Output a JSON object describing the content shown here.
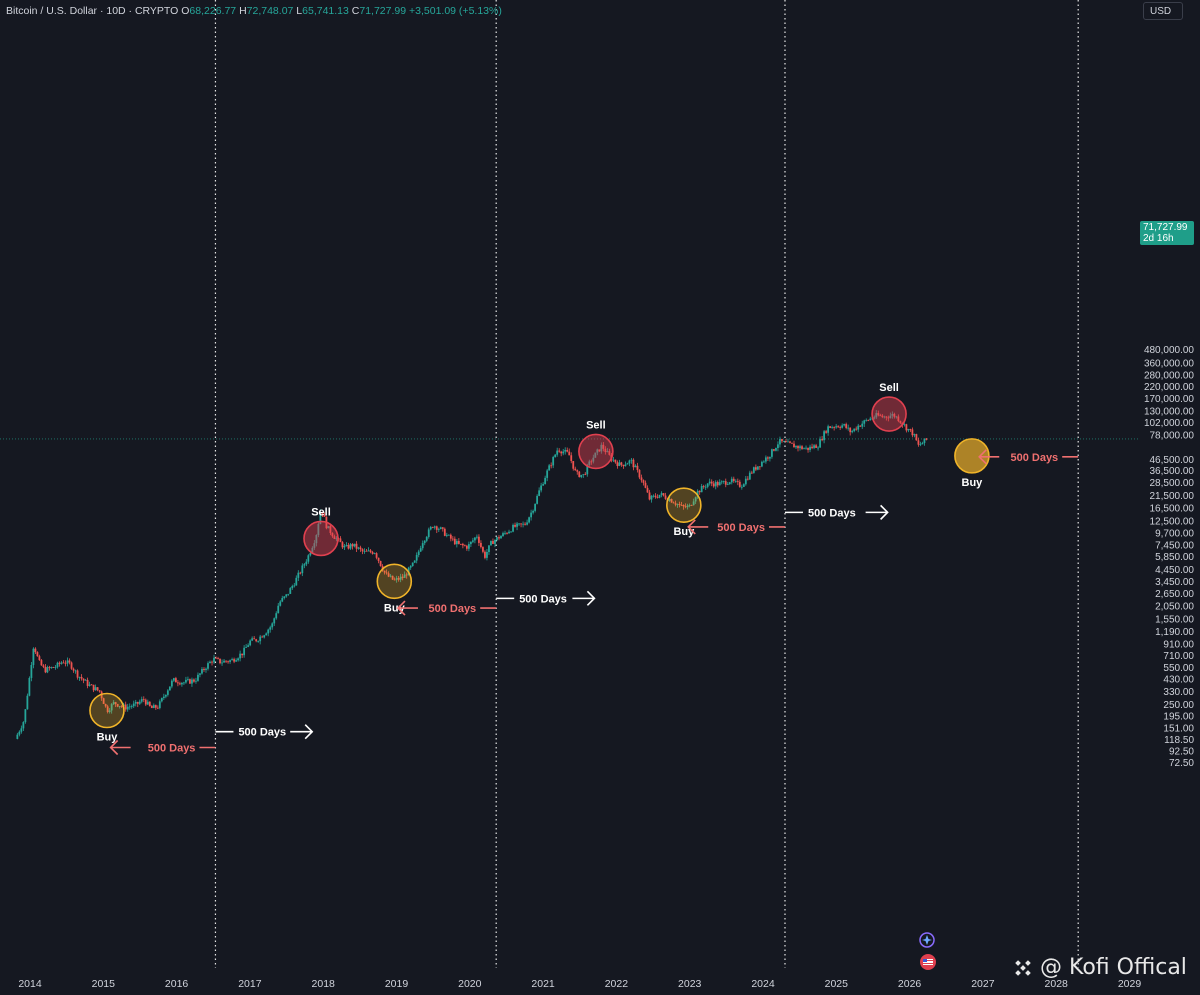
{
  "header": {
    "symbol": "Bitcoin / U.S. Dollar · 10D · CRYPTO",
    "open_label": "O",
    "open_value": "68,226.77",
    "high_label": "H",
    "high_value": "72,748.07",
    "low_label": "L",
    "low_value": "65,741.13",
    "close_label": "C",
    "close_value": "71,727.99",
    "change_value": "+3,501.09 (+5.13%)"
  },
  "currency_button": "USD",
  "price_tag": {
    "price": "71,727.99",
    "countdown": "2d 16h"
  },
  "watermark": {
    "text": "@ Kofi Offical"
  },
  "colors": {
    "background": "#151821",
    "up": "#26a69a",
    "down": "#ef5350",
    "buy": "#f0b429",
    "sell": "#e0404f",
    "white_arrow": "#ffffff",
    "red_arrow": "#f07070"
  },
  "chart_data": {
    "type": "candlestick",
    "y_scale": "log",
    "y_ticks": [
      {
        "value": 480000,
        "label": "480,000.00"
      },
      {
        "value": 360000,
        "label": "360,000.00"
      },
      {
        "value": 280000,
        "label": "280,000.00"
      },
      {
        "value": 220000,
        "label": "220,000.00"
      },
      {
        "value": 170000,
        "label": "170,000.00"
      },
      {
        "value": 130000,
        "label": "130,000.00"
      },
      {
        "value": 102000,
        "label": "102,000.00"
      },
      {
        "value": 78000,
        "label": "78,000.00"
      },
      {
        "value": 46500,
        "label": "46,500.00"
      },
      {
        "value": 36500,
        "label": "36,500.00"
      },
      {
        "value": 28500,
        "label": "28,500.00"
      },
      {
        "value": 21500,
        "label": "21,500.00"
      },
      {
        "value": 16500,
        "label": "16,500.00"
      },
      {
        "value": 12500,
        "label": "12,500.00"
      },
      {
        "value": 9700,
        "label": "9,700.00"
      },
      {
        "value": 7450,
        "label": "7,450.00"
      },
      {
        "value": 5850,
        "label": "5,850.00"
      },
      {
        "value": 4450,
        "label": "4,450.00"
      },
      {
        "value": 3450,
        "label": "3,450.00"
      },
      {
        "value": 2650,
        "label": "2,650.00"
      },
      {
        "value": 2050,
        "label": "2,050.00"
      },
      {
        "value": 1550,
        "label": "1,550.00"
      },
      {
        "value": 1190,
        "label": "1,190.00"
      },
      {
        "value": 910,
        "label": "910.00"
      },
      {
        "value": 710,
        "label": "710.00"
      },
      {
        "value": 550,
        "label": "550.00"
      },
      {
        "value": 430,
        "label": "430.00"
      },
      {
        "value": 330,
        "label": "330.00"
      },
      {
        "value": 250,
        "label": "250.00"
      },
      {
        "value": 195,
        "label": "195.00"
      },
      {
        "value": 151,
        "label": "151.00"
      },
      {
        "value": 118.5,
        "label": "118.50"
      },
      {
        "value": 92.5,
        "label": "92.50"
      },
      {
        "value": 72.5,
        "label": "72.50"
      }
    ],
    "x_ticks": [
      "2014",
      "2015",
      "2016",
      "2017",
      "2018",
      "2019",
      "2020",
      "2021",
      "2022",
      "2023",
      "2024",
      "2025",
      "2026",
      "2027",
      "2028",
      "2029"
    ],
    "current_price": 71727.99,
    "halving_lines": [
      2016.53,
      2020.36,
      2024.3,
      2028.3
    ],
    "price_path": [
      [
        2013.8,
        120
      ],
      [
        2013.92,
        180
      ],
      [
        2014.05,
        900
      ],
      [
        2014.12,
        620
      ],
      [
        2014.2,
        520
      ],
      [
        2014.35,
        560
      ],
      [
        2014.45,
        630
      ],
      [
        2014.55,
        590
      ],
      [
        2014.65,
        470
      ],
      [
        2014.8,
        380
      ],
      [
        2014.95,
        330
      ],
      [
        2015.05,
        220
      ],
      [
        2015.15,
        260
      ],
      [
        2015.3,
        235
      ],
      [
        2015.45,
        250
      ],
      [
        2015.55,
        280
      ],
      [
        2015.65,
        230
      ],
      [
        2015.75,
        240
      ],
      [
        2015.85,
        320
      ],
      [
        2015.95,
        420
      ],
      [
        2016.1,
        400
      ],
      [
        2016.25,
        420
      ],
      [
        2016.4,
        560
      ],
      [
        2016.5,
        660
      ],
      [
        2016.6,
        620
      ],
      [
        2016.75,
        640
      ],
      [
        2016.9,
        750
      ],
      [
        2017.0,
        960
      ],
      [
        2017.1,
        1000
      ],
      [
        2017.2,
        1150
      ],
      [
        2017.3,
        1350
      ],
      [
        2017.4,
        2200
      ],
      [
        2017.5,
        2550
      ],
      [
        2017.6,
        3300
      ],
      [
        2017.7,
        4400
      ],
      [
        2017.8,
        6000
      ],
      [
        2017.9,
        9000
      ],
      [
        2017.97,
        16500
      ],
      [
        2018.05,
        11000
      ],
      [
        2018.15,
        9000
      ],
      [
        2018.3,
        7000
      ],
      [
        2018.4,
        7500
      ],
      [
        2018.55,
        6400
      ],
      [
        2018.7,
        6500
      ],
      [
        2018.85,
        4000
      ],
      [
        2018.97,
        3500
      ],
      [
        2019.1,
        3800
      ],
      [
        2019.25,
        5200
      ],
      [
        2019.35,
        8000
      ],
      [
        2019.5,
        11500
      ],
      [
        2019.6,
        10500
      ],
      [
        2019.7,
        9000
      ],
      [
        2019.85,
        7500
      ],
      [
        2019.97,
        7200
      ],
      [
        2020.1,
        9200
      ],
      [
        2020.2,
        5800
      ],
      [
        2020.3,
        8000
      ],
      [
        2020.45,
        9300
      ],
      [
        2020.6,
        11000
      ],
      [
        2020.75,
        11600
      ],
      [
        2020.85,
        15500
      ],
      [
        2020.95,
        24000
      ],
      [
        2021.05,
        35000
      ],
      [
        2021.2,
        58000
      ],
      [
        2021.35,
        52000
      ],
      [
        2021.45,
        34000
      ],
      [
        2021.55,
        33000
      ],
      [
        2021.65,
        45000
      ],
      [
        2021.8,
        62000
      ],
      [
        2021.92,
        48000
      ],
      [
        2022.05,
        41000
      ],
      [
        2022.2,
        45000
      ],
      [
        2022.35,
        30000
      ],
      [
        2022.45,
        20000
      ],
      [
        2022.6,
        22000
      ],
      [
        2022.75,
        19500
      ],
      [
        2022.9,
        16700
      ],
      [
        2023.0,
        17000
      ],
      [
        2023.1,
        23000
      ],
      [
        2023.25,
        28000
      ],
      [
        2023.4,
        27500
      ],
      [
        2023.55,
        29500
      ],
      [
        2023.7,
        26500
      ],
      [
        2023.85,
        36000
      ],
      [
        2023.97,
        43000
      ],
      [
        2024.1,
        52000
      ],
      [
        2024.22,
        68000
      ],
      [
        2024.35,
        64000
      ],
      [
        2024.5,
        60000
      ],
      [
        2024.6,
        58000
      ],
      [
        2024.75,
        63000
      ],
      [
        2024.88,
        92000
      ],
      [
        2025.0,
        95000
      ],
      [
        2025.1,
        96000
      ],
      [
        2025.2,
        83000
      ],
      [
        2025.3,
        95000
      ],
      [
        2025.4,
        105000
      ],
      [
        2025.55,
        118000
      ],
      [
        2025.65,
        115000
      ],
      [
        2025.78,
        120000
      ],
      [
        2025.85,
        110000
      ],
      [
        2025.95,
        92000
      ],
      [
        2026.05,
        80000
      ],
      [
        2026.12,
        62000
      ],
      [
        2026.2,
        68226.77
      ],
      [
        2026.25,
        71727.99
      ]
    ],
    "markers": [
      {
        "type": "buy",
        "x": 2015.05,
        "price": 220,
        "label": "Buy"
      },
      {
        "type": "sell",
        "x": 2017.97,
        "price": 8600,
        "label": "Sell"
      },
      {
        "type": "buy",
        "x": 2018.97,
        "price": 3450,
        "label": "Buy"
      },
      {
        "type": "sell",
        "x": 2021.72,
        "price": 55000,
        "label": "Sell"
      },
      {
        "type": "buy",
        "x": 2022.92,
        "price": 17500,
        "label": "Buy"
      },
      {
        "type": "sell",
        "x": 2025.72,
        "price": 122000,
        "label": "Sell"
      },
      {
        "type": "buy",
        "x": 2026.85,
        "price": 50000,
        "label": "Buy",
        "projected": true
      }
    ],
    "arrows": [
      {
        "color": "red",
        "direction": "left",
        "from": 2016.53,
        "to": 2015.1,
        "price": 100,
        "label": "500 Days"
      },
      {
        "color": "white",
        "direction": "right",
        "from": 2016.53,
        "to": 2017.85,
        "price": 140,
        "label": "500 Days"
      },
      {
        "color": "red",
        "direction": "left",
        "from": 2020.36,
        "to": 2019.02,
        "price": 1950,
        "label": "500 Days"
      },
      {
        "color": "white",
        "direction": "right",
        "from": 2020.36,
        "to": 2021.7,
        "price": 2400,
        "label": "500 Days"
      },
      {
        "color": "red",
        "direction": "left",
        "from": 2024.3,
        "to": 2022.98,
        "price": 11000,
        "label": "500 Days"
      },
      {
        "color": "white",
        "direction": "right",
        "from": 2024.3,
        "to": 2025.7,
        "price": 15000,
        "label": "500 Days"
      },
      {
        "color": "red",
        "direction": "left",
        "from": 2028.3,
        "to": 2026.95,
        "price": 49000,
        "label": "500 Days"
      }
    ]
  }
}
